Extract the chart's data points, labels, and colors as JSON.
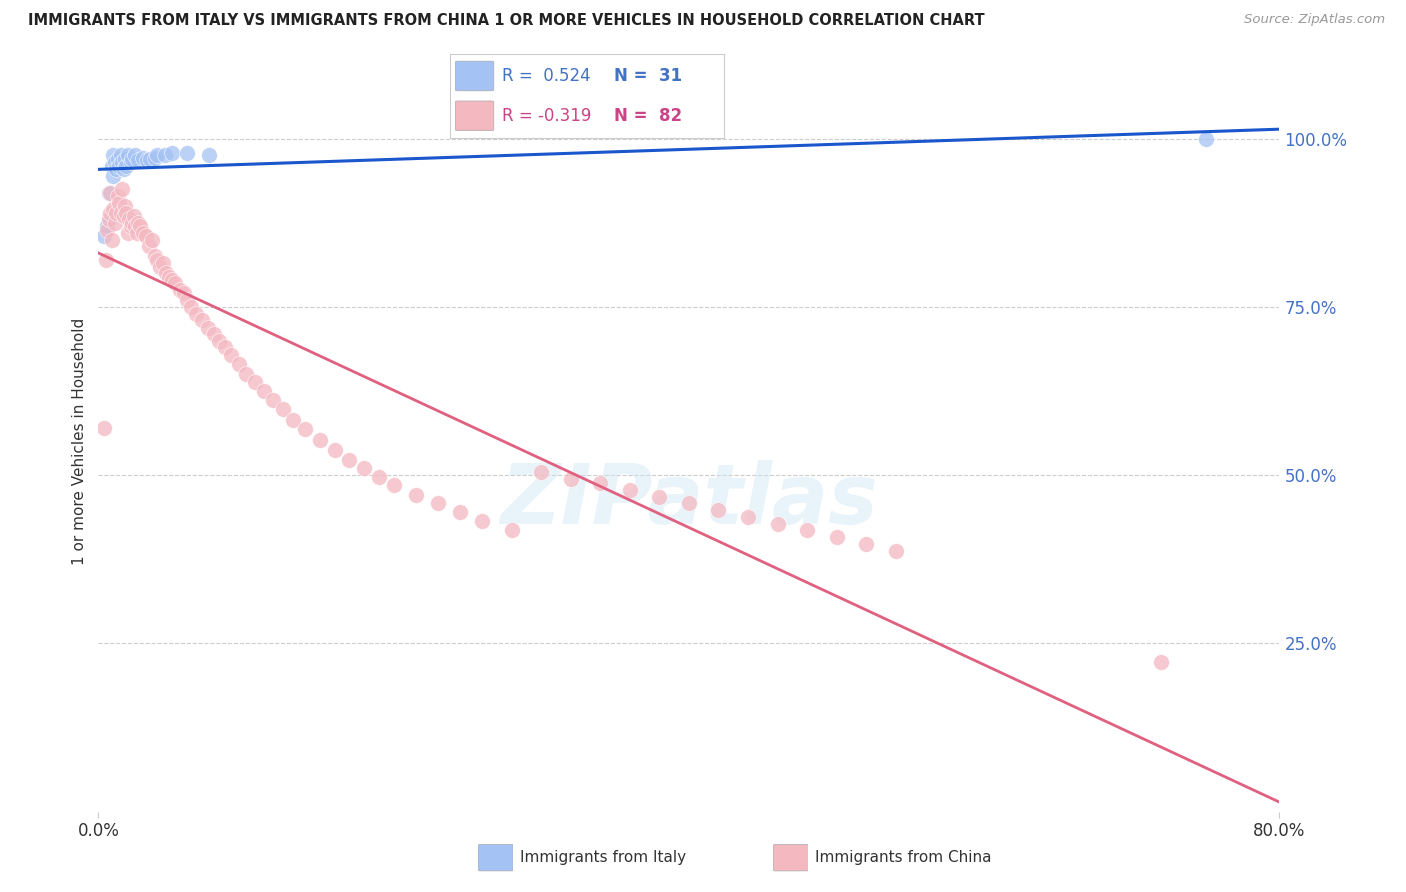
{
  "title": "IMMIGRANTS FROM ITALY VS IMMIGRANTS FROM CHINA 1 OR MORE VEHICLES IN HOUSEHOLD CORRELATION CHART",
  "source": "Source: ZipAtlas.com",
  "ylabel": "1 or more Vehicles in Household",
  "ytick_labels": [
    "100.0%",
    "75.0%",
    "50.0%",
    "25.0%"
  ],
  "ytick_values": [
    1.0,
    0.75,
    0.5,
    0.25
  ],
  "legend_label1": "Immigrants from Italy",
  "legend_label2": "Immigrants from China",
  "r1": 0.524,
  "n1": 31,
  "r2": -0.319,
  "n2": 82,
  "color_italy": "#a4c2f4",
  "color_china": "#f4b8c1",
  "trendline_italy": "#1a56cc",
  "trendline_china": "#e06080",
  "xlim": [
    0.0,
    0.8
  ],
  "ylim": [
    0.0,
    1.1
  ],
  "italy_x": [
    0.004,
    0.006,
    0.007,
    0.008,
    0.009,
    0.01,
    0.01,
    0.011,
    0.012,
    0.013,
    0.014,
    0.015,
    0.016,
    0.017,
    0.018,
    0.019,
    0.02,
    0.022,
    0.023,
    0.025,
    0.027,
    0.03,
    0.033,
    0.035,
    0.038,
    0.04,
    0.045,
    0.05,
    0.06,
    0.075,
    0.75
  ],
  "italy_y": [
    0.855,
    0.87,
    0.92,
    0.88,
    0.96,
    0.945,
    0.975,
    0.965,
    0.955,
    0.97,
    0.96,
    0.975,
    0.965,
    0.955,
    0.97,
    0.96,
    0.975,
    0.965,
    0.97,
    0.975,
    0.968,
    0.972,
    0.968,
    0.97,
    0.972,
    0.975,
    0.975,
    0.978,
    0.978,
    0.975,
    1.0
  ],
  "china_x": [
    0.004,
    0.005,
    0.006,
    0.007,
    0.008,
    0.008,
    0.009,
    0.01,
    0.011,
    0.012,
    0.013,
    0.014,
    0.015,
    0.016,
    0.017,
    0.018,
    0.019,
    0.02,
    0.021,
    0.022,
    0.023,
    0.024,
    0.025,
    0.026,
    0.027,
    0.028,
    0.03,
    0.032,
    0.034,
    0.036,
    0.038,
    0.04,
    0.042,
    0.044,
    0.046,
    0.048,
    0.05,
    0.052,
    0.055,
    0.058,
    0.06,
    0.063,
    0.066,
    0.07,
    0.074,
    0.078,
    0.082,
    0.086,
    0.09,
    0.095,
    0.1,
    0.106,
    0.112,
    0.118,
    0.125,
    0.132,
    0.14,
    0.15,
    0.16,
    0.17,
    0.18,
    0.19,
    0.2,
    0.215,
    0.23,
    0.245,
    0.26,
    0.28,
    0.3,
    0.32,
    0.34,
    0.36,
    0.38,
    0.4,
    0.42,
    0.44,
    0.46,
    0.48,
    0.5,
    0.52,
    0.54,
    0.72
  ],
  "china_y": [
    0.57,
    0.82,
    0.865,
    0.88,
    0.89,
    0.92,
    0.85,
    0.895,
    0.875,
    0.89,
    0.915,
    0.905,
    0.89,
    0.925,
    0.885,
    0.9,
    0.89,
    0.86,
    0.88,
    0.87,
    0.875,
    0.885,
    0.87,
    0.86,
    0.875,
    0.87,
    0.86,
    0.855,
    0.84,
    0.85,
    0.825,
    0.82,
    0.81,
    0.815,
    0.8,
    0.795,
    0.79,
    0.785,
    0.775,
    0.77,
    0.76,
    0.75,
    0.74,
    0.73,
    0.718,
    0.71,
    0.7,
    0.69,
    0.678,
    0.665,
    0.65,
    0.638,
    0.625,
    0.612,
    0.598,
    0.582,
    0.568,
    0.552,
    0.538,
    0.522,
    0.51,
    0.498,
    0.485,
    0.471,
    0.458,
    0.445,
    0.432,
    0.418,
    0.505,
    0.495,
    0.488,
    0.478,
    0.468,
    0.458,
    0.448,
    0.438,
    0.428,
    0.418,
    0.408,
    0.398,
    0.388,
    0.222
  ]
}
